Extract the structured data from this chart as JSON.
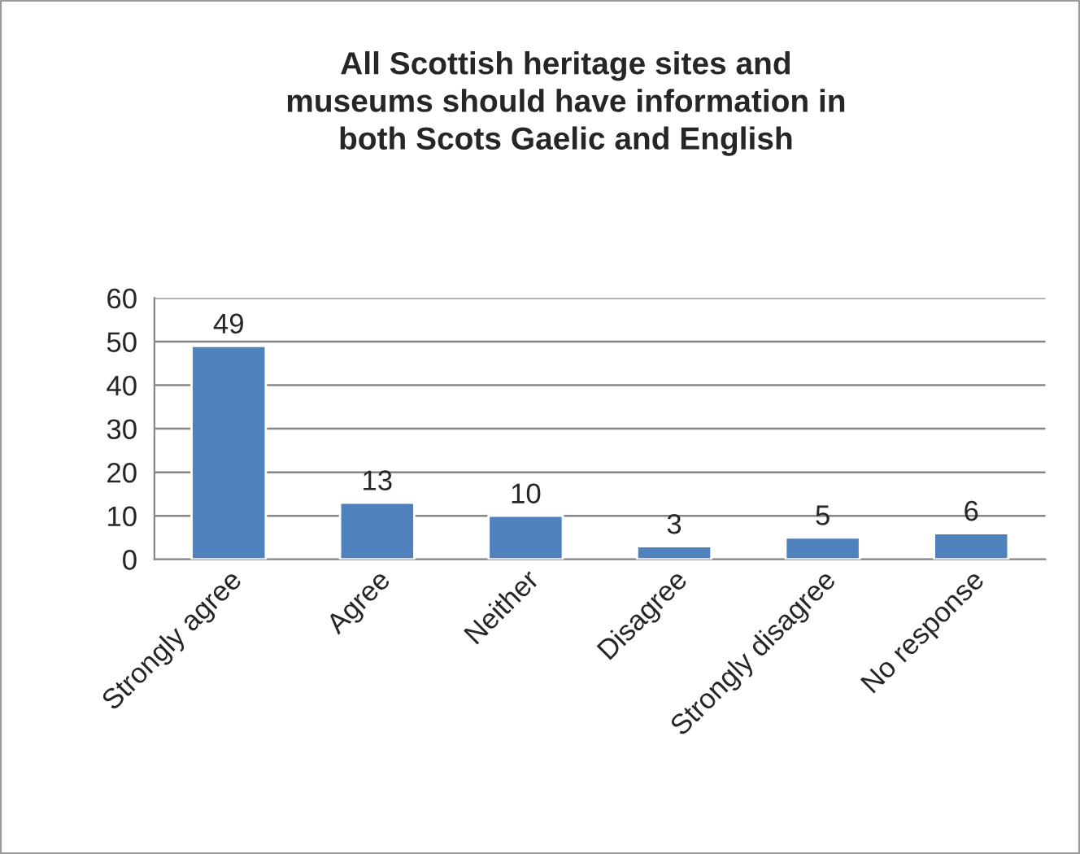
{
  "chart_data": {
    "type": "bar",
    "title": "All Scottish heritage sites and\nmuseums should have information in\nboth Scots Gaelic and English",
    "categories": [
      "Strongly agree",
      "Agree",
      "Neither",
      "Disagree",
      "Strongly disagree",
      "No response"
    ],
    "values": [
      49,
      13,
      10,
      3,
      5,
      6
    ],
    "color": "#4f81bd",
    "ylim": [
      0,
      60
    ],
    "yticks": [
      0,
      10,
      20,
      30,
      40,
      50,
      60
    ],
    "grid": "y",
    "data_labels": true,
    "legend": false
  }
}
